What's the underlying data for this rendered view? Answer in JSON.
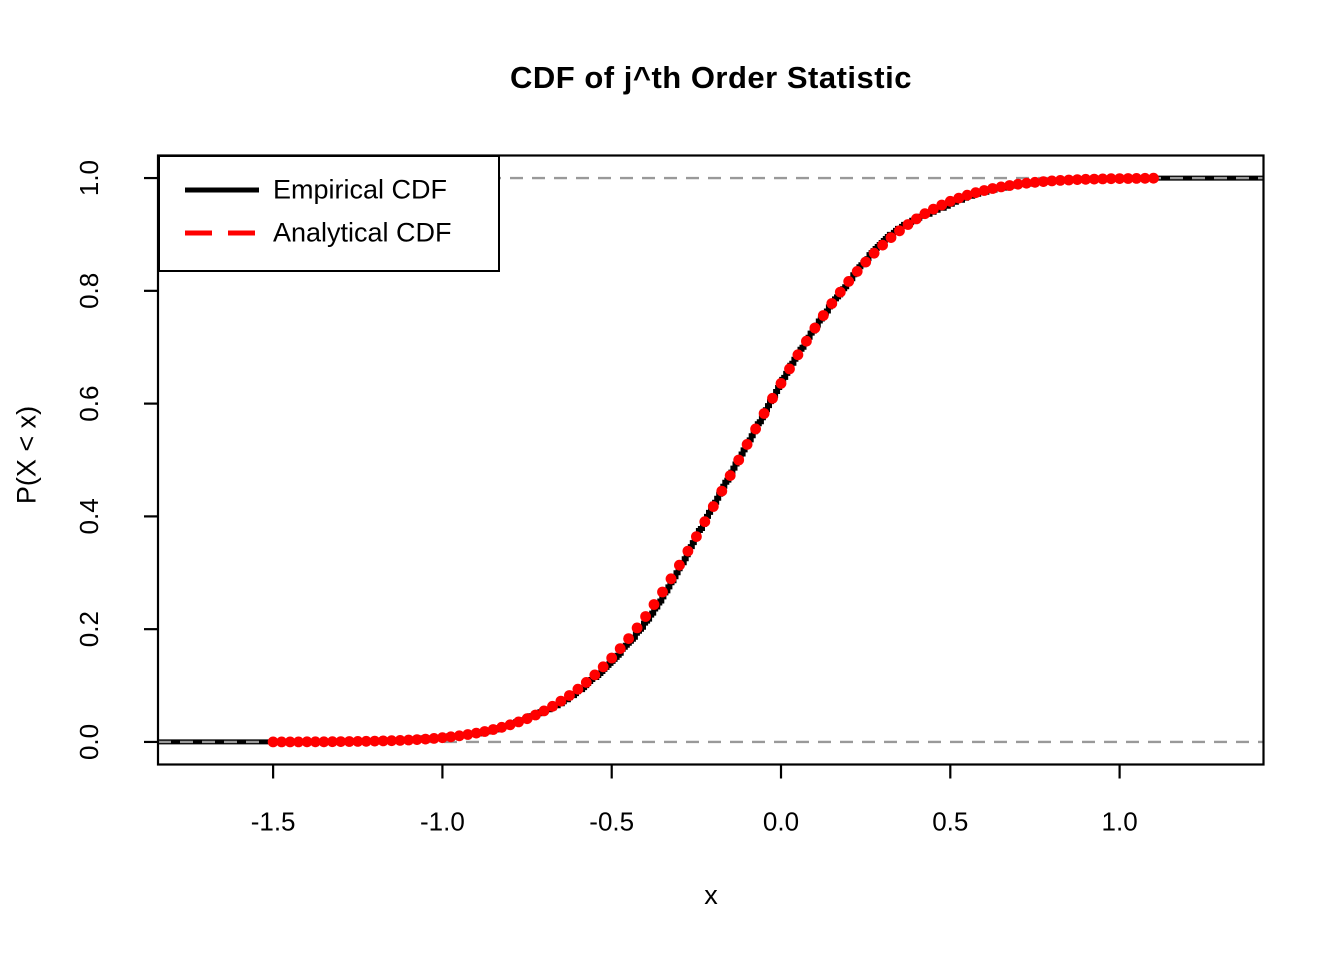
{
  "title": "CDF of j^th Order Statistic",
  "axes": {
    "x": {
      "label": "x",
      "ticks": [
        "-1.5",
        "-1.0",
        "-0.5",
        "0.0",
        "0.5",
        "1.0"
      ],
      "tick_values": [
        -1.5,
        -1.0,
        -0.5,
        0.0,
        0.5,
        1.0
      ],
      "range": [
        -1.84,
        1.425
      ]
    },
    "y": {
      "label": "P(X < x)",
      "ticks": [
        "0.0",
        "0.2",
        "0.4",
        "0.6",
        "0.8",
        "1.0"
      ],
      "tick_values": [
        0.0,
        0.2,
        0.4,
        0.6,
        0.8,
        1.0
      ],
      "range": [
        -0.04,
        1.04
      ]
    }
  },
  "legend": {
    "position": "topleft",
    "items": [
      {
        "label": "Empirical CDF",
        "color": "#000000",
        "style": "solid"
      },
      {
        "label": "Analytical CDF",
        "color": "#FF0000",
        "style": "dashed"
      }
    ]
  },
  "colors": {
    "background": "#FFFFFF",
    "axis": "#000000",
    "gridline": "#999999",
    "empirical_line": "#000000",
    "analytical_points": "#FF0000"
  },
  "chart_data": {
    "type": "line",
    "title": "CDF of j^th Order Statistic",
    "xlabel": "x",
    "ylabel": "P(X < x)",
    "xlim": [
      -1.84,
      1.425
    ],
    "ylim": [
      -0.04,
      1.04
    ],
    "grid": "dashed horizontal reference lines at y=0 and y=1",
    "gridlines_y": [
      0.0,
      1.0
    ],
    "legend_position": "topleft",
    "series": [
      {
        "name": "Empirical CDF",
        "type": "step-line",
        "color": "#000000",
        "line_width": 5,
        "x_start": -1.84,
        "x_end": 1.425,
        "x_step": 0.006
      },
      {
        "name": "Analytical CDF",
        "type": "points",
        "marker": "filled-circle",
        "color": "#FF0000",
        "marker_radius": 5.4,
        "x_start": -1.5,
        "x_end": 1.1,
        "x_step": 0.025
      }
    ],
    "model": {
      "form": "normal_cdf",
      "description": "Both curves follow P(X<x) = Phi((x - mean)/sd)",
      "mean": -0.125,
      "sd": 0.36
    },
    "anchor_points": [
      [
        -1.5,
        0.0001
      ],
      [
        -1.0,
        0.0075
      ],
      [
        -0.5,
        0.149
      ],
      [
        -0.25,
        0.364
      ],
      [
        -0.125,
        0.5
      ],
      [
        0.0,
        0.636
      ],
      [
        0.25,
        0.851
      ],
      [
        0.5,
        0.959
      ],
      [
        0.75,
        0.992
      ],
      [
        1.0,
        0.999
      ],
      [
        1.1,
        0.9997
      ]
    ]
  }
}
